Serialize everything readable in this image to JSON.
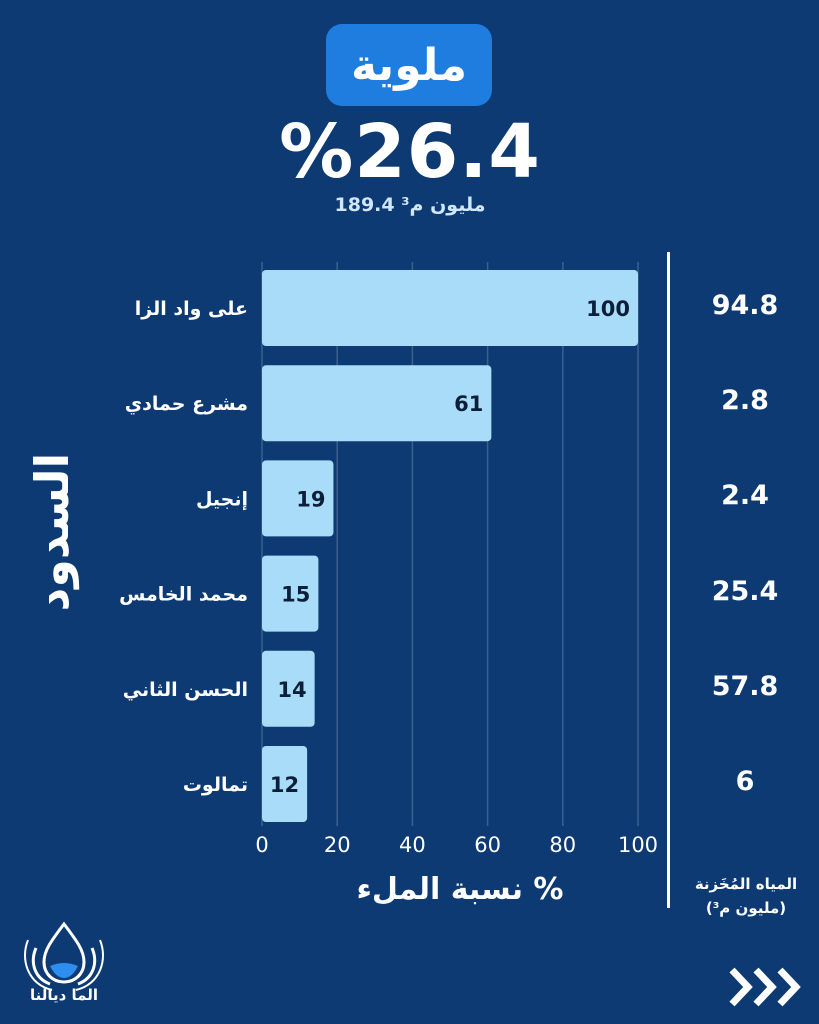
{
  "header": {
    "basin_name": "ملوية",
    "fill_percentage": "%26.4",
    "total_volume": "189.4 مليون م³"
  },
  "axis": {
    "y_title": "السدود",
    "x_title": "نسبة الملء %",
    "stored_header_line1": "المياه المُخَزنة",
    "stored_header_line2": "(مليون م³)"
  },
  "brand": {
    "logo_text": "الما ديالنا"
  },
  "colors": {
    "background": "#0d3a73",
    "bar_fill": "#a9dcf9",
    "pill": "#1f7de0",
    "gridline": "#3d5f8e"
  },
  "icons": [
    "water-drop-logo-icon",
    "next-arrows-icon"
  ],
  "chart_data": {
    "type": "bar",
    "orientation": "horizontal",
    "categories": [
      "على واد الزا",
      "مشرع حمادي",
      "إنجيل",
      "محمد الخامس",
      "الحسن الثاني",
      "تمالوت"
    ],
    "values": [
      100,
      61,
      19,
      15,
      14,
      12
    ],
    "stored_million_m3": [
      "94.8",
      "2.8",
      "2.4",
      "25.4",
      "57.8",
      "6"
    ],
    "xlabel": "نسبة الملء %",
    "ylabel": "السدود",
    "xlim": [
      0,
      100
    ],
    "xticks": [
      0,
      20,
      40,
      60,
      80,
      100
    ],
    "grid": true,
    "data_labels": true
  }
}
